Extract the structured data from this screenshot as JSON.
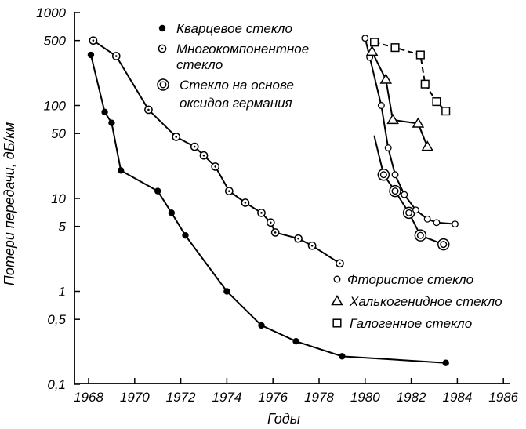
{
  "chart_data": {
    "type": "line",
    "xlabel": "Годы",
    "ylabel": "Потери передачи, дБ/км",
    "xlim": [
      1968,
      1986
    ],
    "ylim": [
      0.1,
      1000
    ],
    "yscale": "log",
    "grid": false,
    "x_ticks": [
      1968,
      1970,
      1972,
      1974,
      1976,
      1978,
      1980,
      1982,
      1984,
      1986
    ],
    "x_tick_labels": [
      "1968",
      "1970",
      "1972",
      "1974",
      "1976",
      "1978",
      "1980",
      "1982",
      "1984",
      "1986"
    ],
    "y_ticks": [
      1000,
      500,
      100,
      50,
      10,
      5,
      1,
      0.5,
      0.1
    ],
    "y_tick_labels": [
      "1000",
      "500",
      "100",
      "50",
      "10",
      "5",
      "1",
      "0,5",
      "0,1"
    ],
    "legend_top_left": [
      {
        "series": "quartz",
        "text": "Кварцевое стекло"
      },
      {
        "series": "multi",
        "text": "Многокомпонентное стекло",
        "lines": [
          "Многокомпонентное",
          "стекло"
        ]
      },
      {
        "series": "germanium",
        "text": "Стекло на основе оксидов германия",
        "lines": [
          "Стекло на основе",
          "оксидов германия"
        ]
      }
    ],
    "legend_bottom_right": [
      {
        "series": "fluoride",
        "text": "Фтористое стекло"
      },
      {
        "series": "chalcogenide",
        "text": "Халькогенидное стекло"
      },
      {
        "series": "halide",
        "text": "Галогенное стекло"
      }
    ],
    "series": [
      {
        "name": "Кварцевое стекло",
        "key": "quartz",
        "marker": "filled-circle",
        "x": [
          1968.1,
          1968.7,
          1969.0,
          1969.4,
          1971.0,
          1971.6,
          1972.2,
          1974.0,
          1975.5,
          1977.0,
          1979.0,
          1983.5
        ],
        "y": [
          350,
          85,
          65,
          20,
          12,
          7,
          4,
          1,
          0.43,
          0.29,
          0.2,
          0.17
        ]
      },
      {
        "name": "Многокомпонентное стекло",
        "key": "multi",
        "marker": "dotted-circle",
        "x": [
          1968.2,
          1969.2,
          1970.6,
          1971.8,
          1972.6,
          1973.0,
          1973.5,
          1974.1,
          1974.8,
          1975.5,
          1975.9,
          1976.1,
          1977.1,
          1977.7,
          1978.9
        ],
        "y": [
          500,
          340,
          90,
          46,
          36,
          29,
          22,
          12,
          9,
          7,
          5.5,
          4.3,
          3.7,
          3.1,
          2.0
        ]
      },
      {
        "name": "Стекло на основе оксидов германия",
        "key": "germanium",
        "marker": "double-circle",
        "x": [
          1980.8,
          1981.3,
          1981.9,
          1982.4,
          1983.4
        ],
        "y": [
          18,
          12,
          7,
          4,
          3.2
        ]
      },
      {
        "name": "Фтористое стекло",
        "key": "fluoride",
        "marker": "open-circle",
        "x": [
          1980.0,
          1980.2,
          1980.7,
          1981.0,
          1981.3,
          1981.7,
          1982.2,
          1982.7,
          1983.1,
          1983.9
        ],
        "y": [
          530,
          330,
          100,
          35,
          18,
          11,
          7.5,
          6,
          5.5,
          5.3
        ]
      },
      {
        "name": "Халькогенидное стекло",
        "key": "chalcogenide",
        "marker": "triangle",
        "x": [
          1980.3,
          1980.9,
          1981.2,
          1982.3,
          1982.7
        ],
        "y": [
          380,
          190,
          70,
          64,
          36
        ]
      },
      {
        "name": "Галогенное стекло",
        "key": "halide",
        "marker": "square",
        "x": [
          1980.4,
          1981.3,
          1982.4,
          1982.6,
          1983.1,
          1983.5
        ],
        "y": [
          480,
          420,
          350,
          170,
          110,
          87
        ]
      }
    ]
  }
}
